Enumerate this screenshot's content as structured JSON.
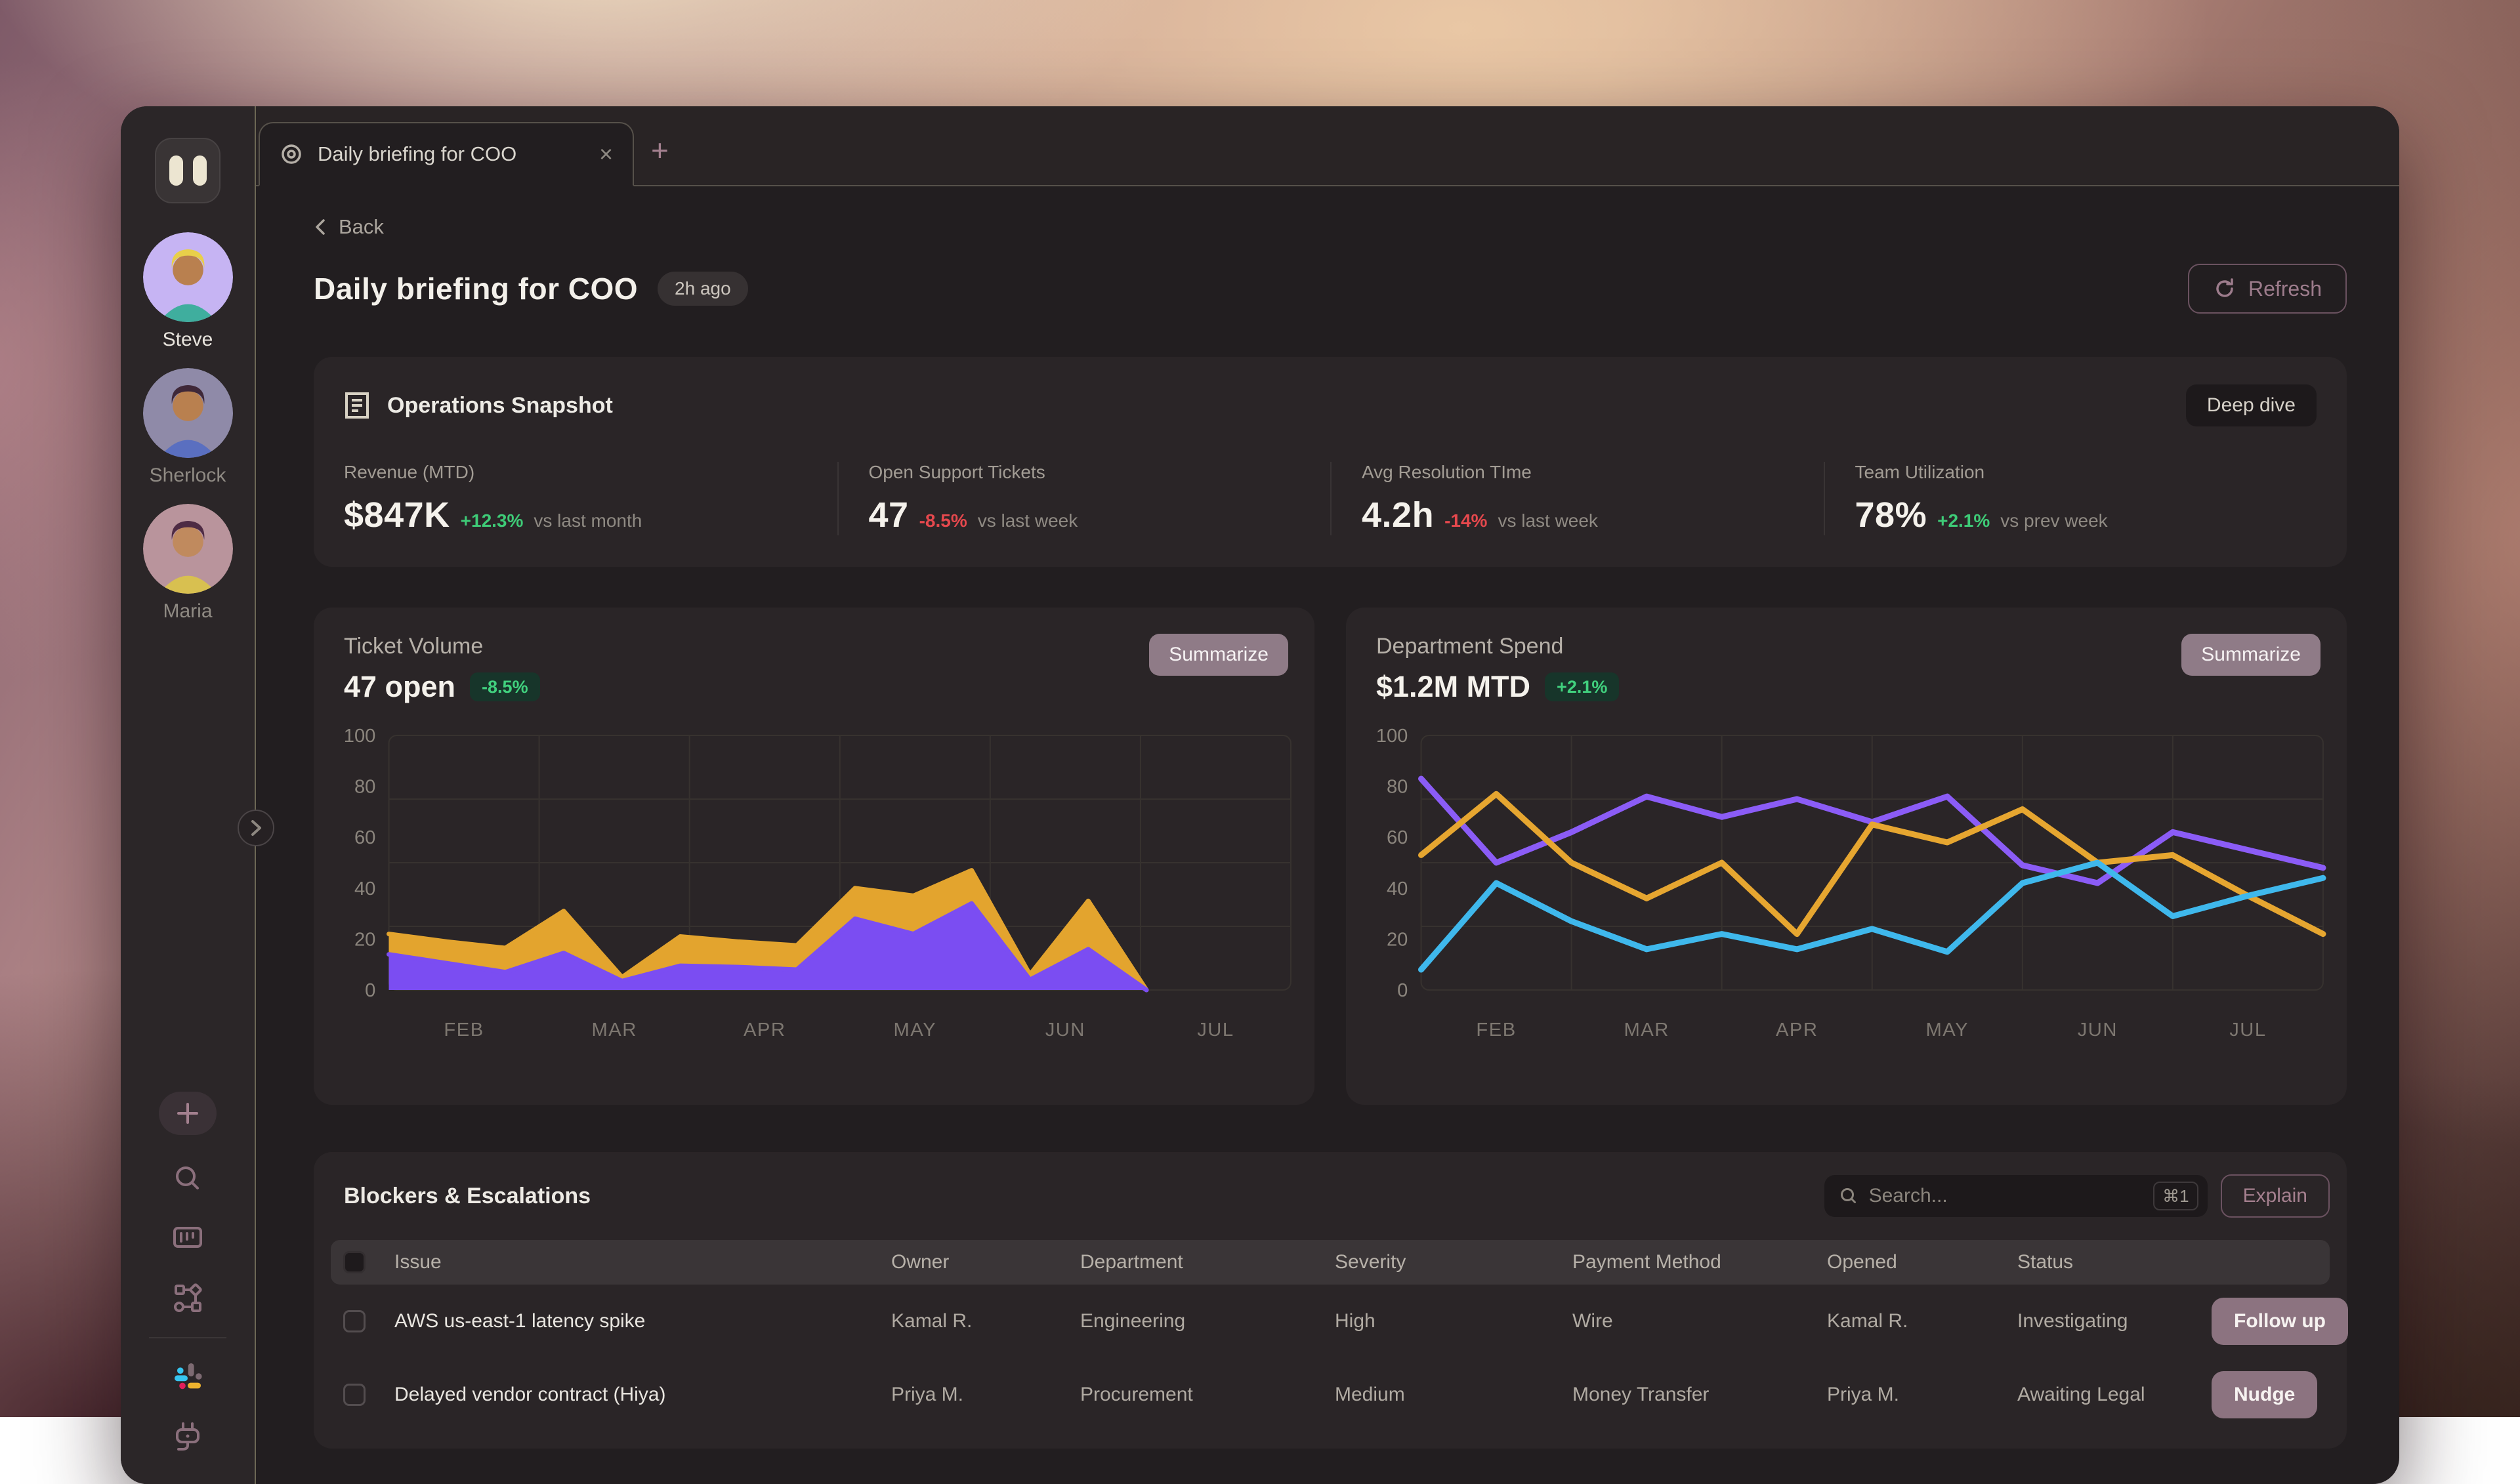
{
  "tabbar": {
    "tabs": [
      {
        "label": "Daily briefing for COO"
      }
    ],
    "new_tab_label": "+"
  },
  "sidebar": {
    "users": [
      {
        "name": "Steve",
        "active": true,
        "bg": "#c6b4f3",
        "skin": "#b9804f",
        "shirt": "#3fae9e",
        "hair": "#e8cf4a"
      },
      {
        "name": "Sherlock",
        "active": false,
        "bg": "#8f8aa8",
        "skin": "#b9804f",
        "shirt": "#5a6fc0",
        "hair": "#3f2838"
      },
      {
        "name": "Maria",
        "active": false,
        "bg": "#b9949c",
        "skin": "#c08a5e",
        "shirt": "#d8c050",
        "hair": "#4e2b44"
      }
    ]
  },
  "header": {
    "back_label": "Back",
    "title": "Daily briefing for COO",
    "age_badge": "2h ago",
    "refresh_label": "Refresh"
  },
  "snapshot": {
    "title": "Operations Snapshot",
    "action_label": "Deep dive",
    "metrics": [
      {
        "label": "Revenue (MTD)",
        "value": "$847K",
        "delta": "+12.3%",
        "delta_color": "#3ecb77",
        "note": "vs last month"
      },
      {
        "label": "Open Support Tickets",
        "value": "47",
        "delta": "-8.5%",
        "delta_color": "#e5484d",
        "note": "vs last week"
      },
      {
        "label": "Avg Resolution TIme",
        "value": "4.2h",
        "delta": "-14%",
        "delta_color": "#e5484d",
        "note": "vs last week"
      },
      {
        "label": "Team Utilization",
        "value": "78%",
        "delta": "+2.1%",
        "delta_color": "#3ecb77",
        "note": "vs prev week"
      }
    ]
  },
  "chart_cards": [
    {
      "title": "Ticket Volume",
      "value": "47 open",
      "badge": "-8.5%",
      "action_label": "Summarize"
    },
    {
      "title": "Department Spend",
      "value": "$1.2M MTD",
      "badge": "+2.1%",
      "action_label": "Summarize"
    }
  ],
  "chart_data": [
    {
      "type": "area",
      "title": "Ticket Volume",
      "x_labels": [
        "FEB",
        "MAR",
        "APR",
        "MAY",
        "JUN",
        "JUL"
      ],
      "yticks": [
        0,
        20,
        40,
        60,
        80,
        100
      ],
      "ylim": [
        0,
        100
      ],
      "grid": true,
      "x_span": 0.84,
      "series": [
        {
          "name": "series_amber",
          "color": "#e3a42e",
          "values": [
            22,
            19,
            16.5,
            31,
            5,
            21,
            19,
            17.5,
            40,
            37,
            47,
            6,
            35,
            0
          ]
        },
        {
          "name": "series_purple",
          "color": "#7b4df2",
          "values": [
            14,
            10.5,
            7,
            14.5,
            3.5,
            9.5,
            9,
            8,
            28,
            22,
            34,
            4,
            16,
            0
          ]
        }
      ]
    },
    {
      "type": "line",
      "title": "Department Spend",
      "x_labels": [
        "FEB",
        "MAR",
        "APR",
        "MAY",
        "JUN",
        "JUL"
      ],
      "yticks": [
        0,
        20,
        40,
        60,
        80,
        100
      ],
      "ylim": [
        0,
        100
      ],
      "grid": true,
      "x_span": 1.0,
      "series": [
        {
          "name": "series_purple",
          "color": "#8b5cf6",
          "values": [
            83,
            50,
            62,
            76,
            68,
            75,
            66,
            76,
            49,
            42,
            62,
            55,
            48
          ]
        },
        {
          "name": "series_amber",
          "color": "#e6a630",
          "values": [
            53,
            77,
            50,
            36,
            50,
            22,
            65,
            58,
            71,
            50,
            53,
            37,
            22
          ]
        },
        {
          "name": "series_cyan",
          "color": "#3fb8ec",
          "values": [
            8,
            42,
            27,
            16,
            22,
            16,
            24,
            15,
            42,
            50,
            29,
            37,
            44
          ]
        }
      ]
    }
  ],
  "blockers": {
    "title": "Blockers & Escalations",
    "search_placeholder": "Search...",
    "shortcut": "⌘1",
    "explain_label": "Explain",
    "columns": [
      "Issue",
      "Owner",
      "Department",
      "Severity",
      "Payment Method",
      "Opened",
      "Status"
    ],
    "rows": [
      {
        "issue": "AWS us-east-1 latency spike",
        "owner": "Kamal R.",
        "department": "Engineering",
        "severity": "High",
        "payment_method": "Wire",
        "opened": "Kamal R.",
        "status": "Investigating",
        "action": "Follow up"
      },
      {
        "issue": "Delayed vendor contract (Hiya)",
        "owner": "Priya M.",
        "department": "Procurement",
        "severity": "Medium",
        "payment_method": "Money Transfer",
        "opened": "Priya M.",
        "status": "Awaiting Legal",
        "action": "Nudge"
      }
    ]
  },
  "colors": {
    "accent_mauve": "#8c7380",
    "positive_green": "#3ecb77",
    "negative_red": "#e5484d",
    "grid": "#37322f",
    "axis_text": "#8b857d",
    "month_text": "#7d7770"
  }
}
